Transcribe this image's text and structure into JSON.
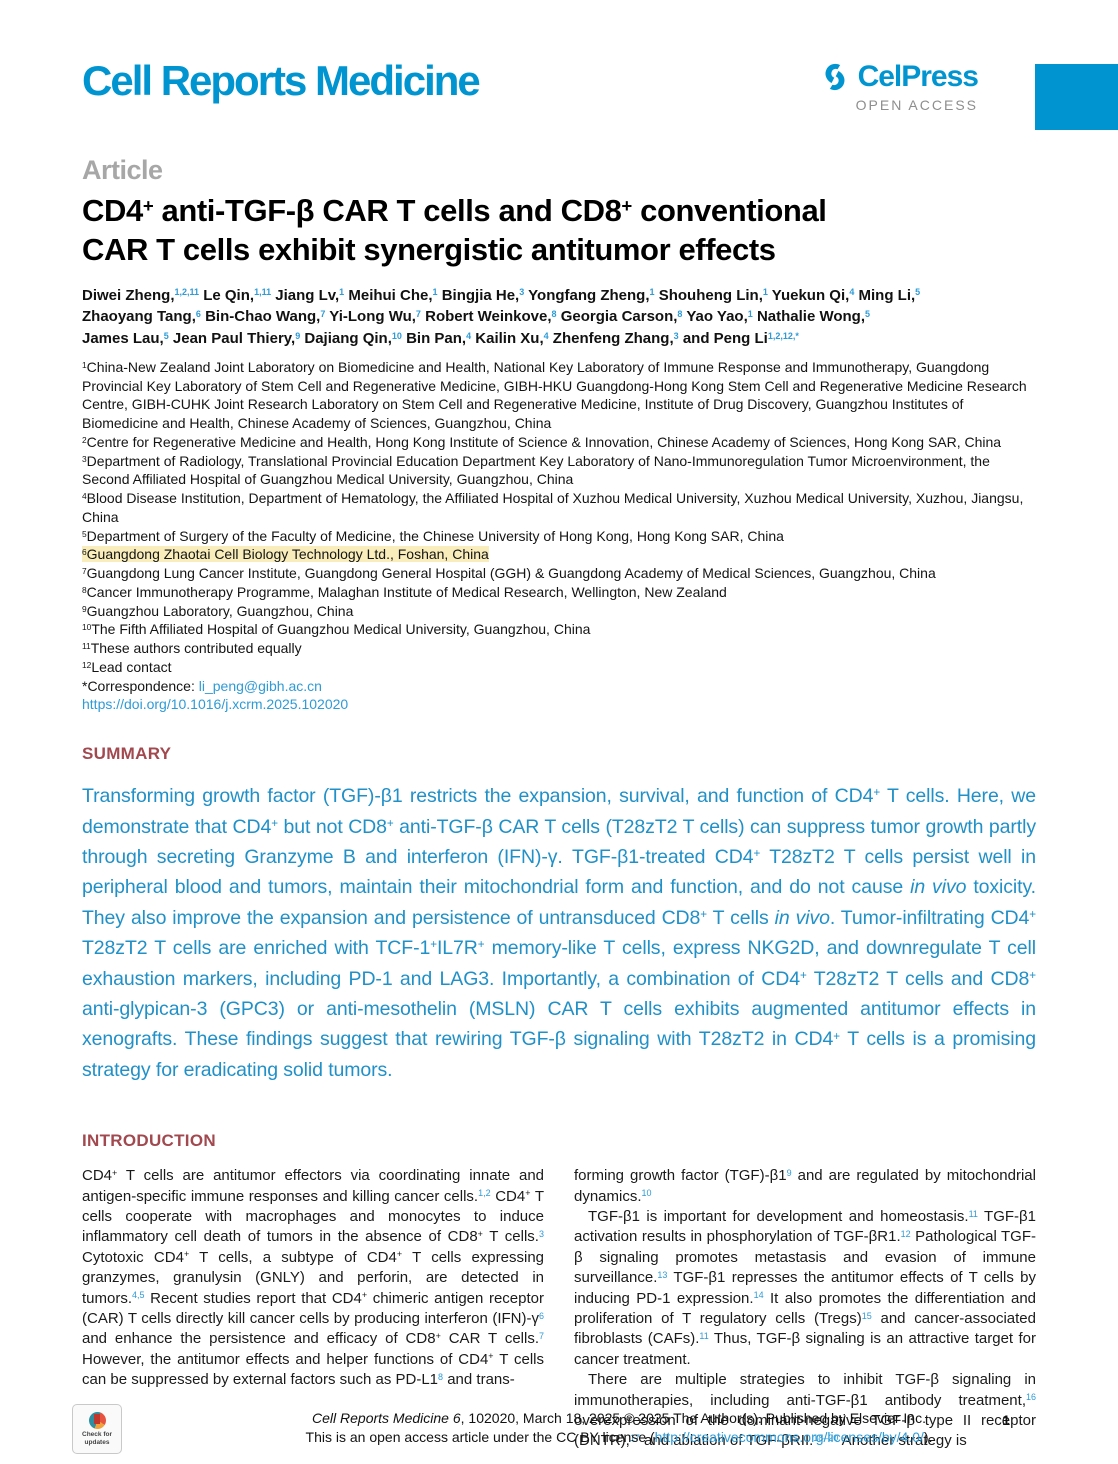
{
  "colors": {
    "brand_blue": "#0095d0",
    "heading_red": "#a1494f",
    "summary_blue": "#2090c8",
    "link_blue": "#2e9bd6",
    "highlight_yellow": "#f8edbb"
  },
  "journal": {
    "wordmark": "Cell Reports Medicine",
    "publisher": "CelPress",
    "open_access": "OPEN ACCESS"
  },
  "article_label": "Article",
  "title_rich": [
    {
      "t": "CD4"
    },
    {
      "supp": "+"
    },
    {
      "t": " anti-TGF-β CAR T cells and CD8"
    },
    {
      "supp": "+"
    },
    {
      "t": " conventional"
    },
    {
      "br": true
    },
    {
      "t": "CAR T cells exhibit synergistic antitumor effects"
    }
  ],
  "authors_rich": [
    {
      "t": "Diwei Zheng,"
    },
    {
      "sup": "1,2,11"
    },
    {
      "t": " Le Qin,"
    },
    {
      "sup": "1,11"
    },
    {
      "t": " Jiang Lv,"
    },
    {
      "sup": "1"
    },
    {
      "t": " Meihui Che,"
    },
    {
      "sup": "1"
    },
    {
      "t": " Bingjia He,"
    },
    {
      "sup": "3"
    },
    {
      "t": " Yongfang Zheng,"
    },
    {
      "sup": "1"
    },
    {
      "t": " Shouheng Lin,"
    },
    {
      "sup": "1"
    },
    {
      "t": " Yuekun Qi,"
    },
    {
      "sup": "4"
    },
    {
      "t": " Ming Li,"
    },
    {
      "sup": "5"
    },
    {
      "br": true
    },
    {
      "t": "Zhaoyang Tang,"
    },
    {
      "sup": "6"
    },
    {
      "t": " Bin-Chao Wang,"
    },
    {
      "sup": "7"
    },
    {
      "t": " Yi-Long Wu,"
    },
    {
      "sup": "7"
    },
    {
      "t": " Robert Weinkove,"
    },
    {
      "sup": "8"
    },
    {
      "t": " Georgia Carson,"
    },
    {
      "sup": "8"
    },
    {
      "t": " Yao Yao,"
    },
    {
      "sup": "1"
    },
    {
      "t": " Nathalie Wong,"
    },
    {
      "sup": "5"
    },
    {
      "br": true
    },
    {
      "t": "James Lau,"
    },
    {
      "sup": "5"
    },
    {
      "t": " Jean Paul Thiery,"
    },
    {
      "sup": "9"
    },
    {
      "t": " Dajiang Qin,"
    },
    {
      "sup": "10"
    },
    {
      "t": " Bin Pan,"
    },
    {
      "sup": "4"
    },
    {
      "t": " Kailin Xu,"
    },
    {
      "sup": "4"
    },
    {
      "t": " Zhenfeng Zhang,"
    },
    {
      "sup": "3"
    },
    {
      "t": " and Peng Li"
    },
    {
      "sup": "1,2,12,*"
    }
  ],
  "affiliations": {
    "lines": [
      {
        "segments": [
          {
            "supp": "1"
          },
          {
            "t": "China-New Zealand Joint Laboratory on Biomedicine and Health, National Key Laboratory of Immune Response and Immunotherapy, Guangdong Provincial Key Laboratory of Stem Cell and Regenerative Medicine, GIBH-HKU Guangdong-Hong Kong Stem Cell and Regenerative Medicine Research Centre, GIBH-CUHK Joint Research Laboratory on Stem Cell and Regenerative Medicine, Institute of Drug Discovery, Guangzhou Institutes of Biomedicine and Health, Chinese Academy of Sciences, Guangzhou, China"
          }
        ]
      },
      {
        "segments": [
          {
            "supp": "2"
          },
          {
            "t": "Centre for Regenerative Medicine and Health, Hong Kong Institute of Science & Innovation, Chinese Academy of Sciences, Hong Kong SAR, China"
          }
        ]
      },
      {
        "segments": [
          {
            "supp": "3"
          },
          {
            "t": "Department of Radiology, Translational Provincial Education Department Key Laboratory of Nano-Immunoregulation Tumor Microenvironment, the Second Affiliated Hospital of Guangzhou Medical University, Guangzhou, China"
          }
        ]
      },
      {
        "segments": [
          {
            "supp": "4"
          },
          {
            "t": "Blood Disease Institution, Department of Hematology, the Affiliated Hospital of Xuzhou Medical University, Xuzhou Medical University, Xuzhou, Jiangsu, China"
          }
        ]
      },
      {
        "segments": [
          {
            "supp": "5"
          },
          {
            "t": "Department of Surgery of the Faculty of Medicine, the Chinese University of Hong Kong, Hong Kong SAR, China"
          }
        ]
      },
      {
        "highlight": true,
        "segments": [
          {
            "supp": "6"
          },
          {
            "t": "Guangdong Zhaotai Cell Biology Technology Ltd., Foshan, China"
          }
        ]
      },
      {
        "segments": [
          {
            "supp": "7"
          },
          {
            "t": "Guangdong Lung Cancer Institute, Guangdong General Hospital (GGH) & Guangdong Academy of Medical Sciences, Guangzhou, China"
          }
        ]
      },
      {
        "segments": [
          {
            "supp": "8"
          },
          {
            "t": "Cancer Immunotherapy Programme, Malaghan Institute of Medical Research, Wellington, New Zealand"
          }
        ]
      },
      {
        "segments": [
          {
            "supp": "9"
          },
          {
            "t": "Guangzhou Laboratory, Guangzhou, China"
          }
        ]
      },
      {
        "segments": [
          {
            "supp": "10"
          },
          {
            "t": "The Fifth Affiliated Hospital of Guangzhou Medical University, Guangzhou, China"
          }
        ]
      },
      {
        "segments": [
          {
            "supp": "11"
          },
          {
            "t": "These authors contributed equally"
          }
        ]
      },
      {
        "segments": [
          {
            "supp": "12"
          },
          {
            "t": "Lead contact"
          }
        ]
      },
      {
        "segments": [
          {
            "t": "*Correspondence: "
          },
          {
            "link": "li_peng@gibh.ac.cn"
          }
        ]
      },
      {
        "segments": [
          {
            "link": "https://doi.org/10.1016/j.xcrm.2025.102020"
          }
        ]
      }
    ]
  },
  "summary": {
    "heading": "SUMMARY",
    "body_rich": [
      {
        "t": "Transforming growth factor (TGF)-β1 restricts the expansion, survival, and function of CD4"
      },
      {
        "supp": "+"
      },
      {
        "t": " T cells. Here, we demonstrate that CD4"
      },
      {
        "supp": "+"
      },
      {
        "t": " but not CD8"
      },
      {
        "supp": "+"
      },
      {
        "t": " anti-TGF-β CAR T cells (T28zT2 T cells) can suppress tumor growth partly through secreting Granzyme B and interferon (IFN)-γ. TGF-β1-treated CD4"
      },
      {
        "supp": "+"
      },
      {
        "t": " T28zT2 T cells persist well in peripheral blood and tumors, maintain their mitochondrial form and function, and do not cause "
      },
      {
        "i": "in vivo"
      },
      {
        "t": " toxicity. They also improve the expansion and persistence of untransduced CD8"
      },
      {
        "supp": "+"
      },
      {
        "t": " T cells "
      },
      {
        "i": "in vivo"
      },
      {
        "t": ". Tumor-infiltrating CD4"
      },
      {
        "supp": "+"
      },
      {
        "t": " T28zT2 T cells are enriched with TCF-1"
      },
      {
        "supp": "+"
      },
      {
        "t": "IL7R"
      },
      {
        "supp": "+"
      },
      {
        "t": " memory-like T cells, express NKG2D, and downregulate T cell exhaustion markers, including PD-1 and LAG3. Importantly, a combination of CD4"
      },
      {
        "supp": "+"
      },
      {
        "t": " T28zT2 T cells and CD8"
      },
      {
        "supp": "+"
      },
      {
        "t": " anti-glypican-3 (GPC3) or anti-mesothelin (MSLN) CAR T cells exhibits augmented antitumor effects in xenografts. These findings suggest that rewiring TGF-β signaling with T28zT2 in CD4"
      },
      {
        "supp": "+"
      },
      {
        "t": " T cells is a promising strategy for eradicating solid tumors."
      }
    ]
  },
  "introduction": {
    "heading": "INTRODUCTION",
    "col1": [
      {
        "indent": false,
        "segments": [
          {
            "t": "CD4"
          },
          {
            "supp": "+"
          },
          {
            "t": " T cells are antitumor effectors via coordinating innate and antigen-specific immune responses and killing cancer cells."
          },
          {
            "sup": "1,2"
          },
          {
            "t": " CD4"
          },
          {
            "supp": "+"
          },
          {
            "t": " T cells cooperate with macrophages and monocytes to induce inflammatory cell death of tumors in the absence of CD8"
          },
          {
            "supp": "+"
          },
          {
            "t": " T cells."
          },
          {
            "sup": "3"
          },
          {
            "t": " Cytotoxic CD4"
          },
          {
            "supp": "+"
          },
          {
            "t": " T cells, a subtype of CD4"
          },
          {
            "supp": "+"
          },
          {
            "t": " T cells expressing granzymes, granulysin (GNLY) and perforin, are detected in tumors."
          },
          {
            "sup": "4,5"
          },
          {
            "t": " Recent studies report that CD4"
          },
          {
            "supp": "+"
          },
          {
            "t": " chimeric antigen receptor (CAR) T cells directly kill cancer cells by producing interferon (IFN)-γ"
          },
          {
            "sup": "6"
          },
          {
            "t": " and enhance the persistence and efficacy of CD8"
          },
          {
            "supp": "+"
          },
          {
            "t": " CAR T cells."
          },
          {
            "sup": "7"
          },
          {
            "t": " However, the antitumor effects and helper functions of CD4"
          },
          {
            "supp": "+"
          },
          {
            "t": " T cells can be suppressed by external factors such as PD-L1"
          },
          {
            "sup": "8"
          },
          {
            "t": " and trans-"
          }
        ]
      }
    ],
    "col2": [
      {
        "indent": false,
        "segments": [
          {
            "t": "forming growth factor (TGF)-β1"
          },
          {
            "sup": "9"
          },
          {
            "t": " and are regulated by mitochondrial dynamics."
          },
          {
            "sup": "10"
          }
        ]
      },
      {
        "indent": true,
        "segments": [
          {
            "t": "TGF-β1 is important for development and homeostasis."
          },
          {
            "sup": "11"
          },
          {
            "t": " TGF-β1 activation results in phosphorylation of TGF-βR1."
          },
          {
            "sup": "12"
          },
          {
            "t": " Pathological TGF-β signaling promotes metastasis and evasion of immune surveillance."
          },
          {
            "sup": "13"
          },
          {
            "t": " TGF-β1 represses the antitumor effects of T cells by inducing PD-1 expression."
          },
          {
            "sup": "14"
          },
          {
            "t": " It also promotes the differentiation and proliferation of T regulatory cells (Tregs)"
          },
          {
            "sup": "15"
          },
          {
            "t": " and cancer-associated fibroblasts (CAFs)."
          },
          {
            "sup": "11"
          },
          {
            "t": " Thus, TGF-β signaling is an attractive target for cancer treatment."
          }
        ]
      },
      {
        "indent": true,
        "segments": [
          {
            "t": "There are multiple strategies to inhibit TGF-β signaling in immunotherapies, including anti-TGF-β1 antibody treatment,"
          },
          {
            "sup": "16"
          },
          {
            "t": " overexpression of the dominant-negative TGF-β type II receptor (DNTR),"
          },
          {
            "sup": "17"
          },
          {
            "t": " and ablation of TGF-βRII."
          },
          {
            "sup": "18–20"
          },
          {
            "t": " Another strategy is"
          }
        ]
      }
    ]
  },
  "footer": {
    "citation_rich": [
      {
        "i": "Cell Reports Medicine 6"
      },
      {
        "t": ", 102020, March 18, 2025 © 2025 The Author(s). Published by Elsevier Inc."
      }
    ],
    "license_rich": [
      {
        "t": "This is an open access article under the CC BY license ("
      },
      {
        "link": "http://creativecommons.org/licenses/by/4.0/"
      },
      {
        "t": ")."
      }
    ],
    "page_number": "1"
  },
  "badge": {
    "label": "Check for updates"
  }
}
